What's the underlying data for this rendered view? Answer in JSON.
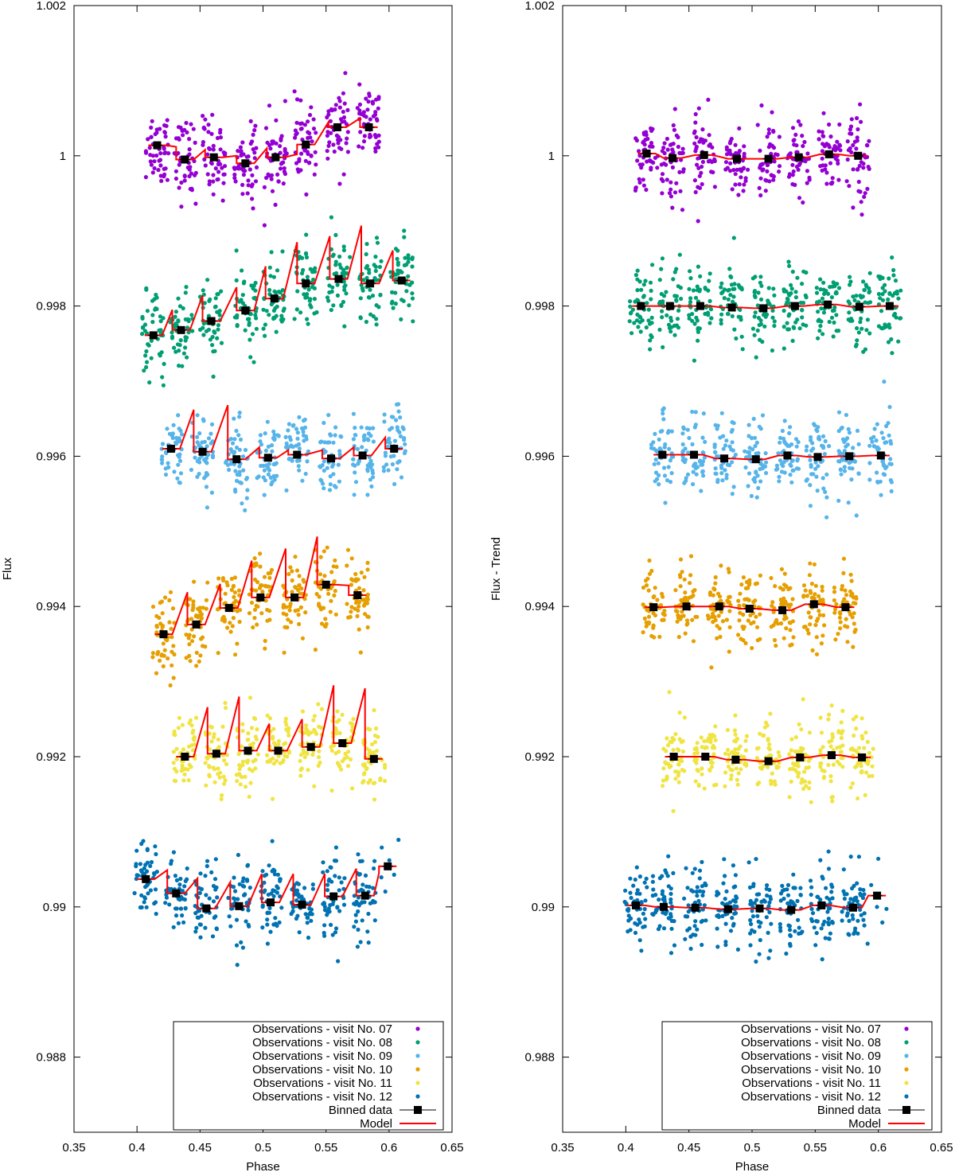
{
  "colors": {
    "07": "#9400d3",
    "08": "#009e73",
    "09": "#56b4e9",
    "10": "#e69f00",
    "11": "#f0e442",
    "12": "#0072b2",
    "binned": "#000000",
    "model": "#ff0000"
  },
  "chart_data": [
    {
      "type": "scatter",
      "xlabel": "Phase",
      "ylabel": "Flux",
      "xlim": [
        0.35,
        0.65
      ],
      "ylim": [
        0.987,
        1.002
      ],
      "xticks": [
        "0.35",
        "0.4",
        "0.45",
        "0.5",
        "0.55",
        "0.6",
        "0.65"
      ],
      "yticks": [
        "0.988",
        "0.99",
        "0.992",
        "0.994",
        "0.996",
        "0.998",
        "1",
        "1.002"
      ],
      "grid": false,
      "legend_placement": "bottom-right",
      "legend": [
        "Observations - visit No. 07",
        "Observations - visit No. 08",
        "Observations - visit No. 09",
        "Observations - visit No. 10",
        "Observations - visit No. 11",
        "Observations - visit No. 12",
        "Binned data",
        "Model"
      ],
      "series": [
        {
          "visit": "07",
          "binned": [
            [
              0.416,
              1.00014
            ],
            [
              0.438,
              0.99995
            ],
            [
              0.461,
              0.99998
            ],
            [
              0.486,
              0.9999
            ],
            [
              0.51,
              0.99998
            ],
            [
              0.534,
              1.00015
            ],
            [
              0.559,
              1.00038
            ],
            [
              0.584,
              1.00038
            ]
          ],
          "model_peaks": [
            1.00012,
            1.00008,
            1.0,
            1.0001,
            1.00002,
            1.00045,
            1.0005
          ]
        },
        {
          "visit": "08",
          "binned": [
            [
              0.413,
              0.99761
            ],
            [
              0.435,
              0.99768
            ],
            [
              0.459,
              0.9978
            ],
            [
              0.486,
              0.99794
            ],
            [
              0.509,
              0.9981
            ],
            [
              0.534,
              0.9983
            ],
            [
              0.56,
              0.99836
            ],
            [
              0.585,
              0.9983
            ],
            [
              0.61,
              0.99834
            ]
          ],
          "model_peaks": [
            0.99795,
            0.99814,
            0.99825,
            0.99853,
            0.99885,
            0.99893,
            0.99907,
            0.99874
          ]
        },
        {
          "visit": "09",
          "binned": [
            [
              0.427,
              0.9961
            ],
            [
              0.452,
              0.99606
            ],
            [
              0.479,
              0.99596
            ],
            [
              0.504,
              0.99598
            ],
            [
              0.527,
              0.99602
            ],
            [
              0.554,
              0.99597
            ],
            [
              0.579,
              0.99601
            ],
            [
              0.604,
              0.9961
            ]
          ],
          "model_peaks": [
            0.99662,
            0.99668,
            0.99612,
            0.99608,
            0.99608,
            0.99612,
            0.99625
          ]
        },
        {
          "visit": "10",
          "binned": [
            [
              0.421,
              0.99363
            ],
            [
              0.447,
              0.99376
            ],
            [
              0.473,
              0.99398
            ],
            [
              0.498,
              0.99412
            ],
            [
              0.525,
              0.99412
            ],
            [
              0.55,
              0.99429
            ],
            [
              0.575,
              0.99415
            ]
          ],
          "model_peaks": [
            0.99419,
            0.9943,
            0.99461,
            0.99477,
            0.99493,
            0.99428
          ]
        },
        {
          "visit": "11",
          "binned": [
            [
              0.438,
              0.992
            ],
            [
              0.463,
              0.99204
            ],
            [
              0.488,
              0.99208
            ],
            [
              0.512,
              0.99208
            ],
            [
              0.538,
              0.99213
            ],
            [
              0.563,
              0.99218
            ],
            [
              0.588,
              0.99197
            ]
          ],
          "model_peaks": [
            0.99266,
            0.9928,
            0.99244,
            0.9925,
            0.99295,
            0.99291
          ]
        },
        {
          "visit": "12",
          "binned": [
            [
              0.407,
              0.99037
            ],
            [
              0.431,
              0.99018
            ],
            [
              0.455,
              0.98998
            ],
            [
              0.481,
              0.99001
            ],
            [
              0.506,
              0.99006
            ],
            [
              0.531,
              0.99003
            ],
            [
              0.556,
              0.99014
            ],
            [
              0.581,
              0.99015
            ],
            [
              0.599,
              0.99054
            ]
          ],
          "model_peaks": [
            0.99049,
            0.99038,
            0.99033,
            0.99044,
            0.99044,
            0.99044,
            0.99051,
            0.99045
          ]
        }
      ]
    },
    {
      "type": "scatter",
      "xlabel": "Phase",
      "ylabel": "Flux - Trend",
      "xlim": [
        0.35,
        0.65
      ],
      "ylim": [
        0.987,
        1.002
      ],
      "xticks": [
        "0.35",
        "0.4",
        "0.45",
        "0.5",
        "0.55",
        "0.6",
        "0.65"
      ],
      "yticks": [
        "0.988",
        "0.99",
        "0.992",
        "0.994",
        "0.996",
        "0.998",
        "1",
        "1.002"
      ],
      "grid": false,
      "legend_placement": "bottom-right",
      "legend": [
        "Observations - visit No. 07",
        "Observations - visit No. 08",
        "Observations - visit No. 09",
        "Observations - visit No. 10",
        "Observations - visit No. 11",
        "Observations - visit No. 12",
        "Binned data",
        "Model"
      ],
      "series": [
        {
          "visit": "07",
          "binned": [
            [
              0.4165,
              1.00003
            ],
            [
              0.437,
              0.99997
            ],
            [
              0.462,
              1.00001
            ],
            [
              0.488,
              0.99996
            ],
            [
              0.513,
              0.99996
            ],
            [
              0.537,
              0.99998
            ],
            [
              0.561,
              1.00002
            ],
            [
              0.584,
              1.0
            ]
          ]
        },
        {
          "visit": "08",
          "binned": [
            [
              0.412,
              0.998
            ],
            [
              0.435,
              0.998
            ],
            [
              0.459,
              0.998
            ],
            [
              0.484,
              0.99798
            ],
            [
              0.509,
              0.99797
            ],
            [
              0.534,
              0.998
            ],
            [
              0.56,
              0.99802
            ],
            [
              0.585,
              0.99799
            ],
            [
              0.609,
              0.998
            ]
          ]
        },
        {
          "visit": "09",
          "binned": [
            [
              0.429,
              0.99602
            ],
            [
              0.454,
              0.99602
            ],
            [
              0.478,
              0.99597
            ],
            [
              0.503,
              0.99596
            ],
            [
              0.528,
              0.99601
            ],
            [
              0.552,
              0.99599
            ],
            [
              0.577,
              0.996
            ],
            [
              0.602,
              0.99601
            ]
          ]
        },
        {
          "visit": "10",
          "binned": [
            [
              0.422,
              0.99399
            ],
            [
              0.448,
              0.994
            ],
            [
              0.474,
              0.994
            ],
            [
              0.498,
              0.99397
            ],
            [
              0.524,
              0.99395
            ],
            [
              0.549,
              0.99403
            ],
            [
              0.574,
              0.99399
            ]
          ]
        },
        {
          "visit": "11",
          "binned": [
            [
              0.438,
              0.992
            ],
            [
              0.463,
              0.992
            ],
            [
              0.487,
              0.99196
            ],
            [
              0.513,
              0.99194
            ],
            [
              0.538,
              0.99199
            ],
            [
              0.563,
              0.99202
            ],
            [
              0.587,
              0.99199
            ]
          ]
        },
        {
          "visit": "12",
          "binned": [
            [
              0.408,
              0.99002
            ],
            [
              0.43,
              0.99
            ],
            [
              0.455,
              0.98999
            ],
            [
              0.481,
              0.98997
            ],
            [
              0.506,
              0.98998
            ],
            [
              0.531,
              0.98996
            ],
            [
              0.555,
              0.99002
            ],
            [
              0.58,
              0.98999
            ],
            [
              0.599,
              0.99015
            ]
          ]
        }
      ]
    }
  ]
}
